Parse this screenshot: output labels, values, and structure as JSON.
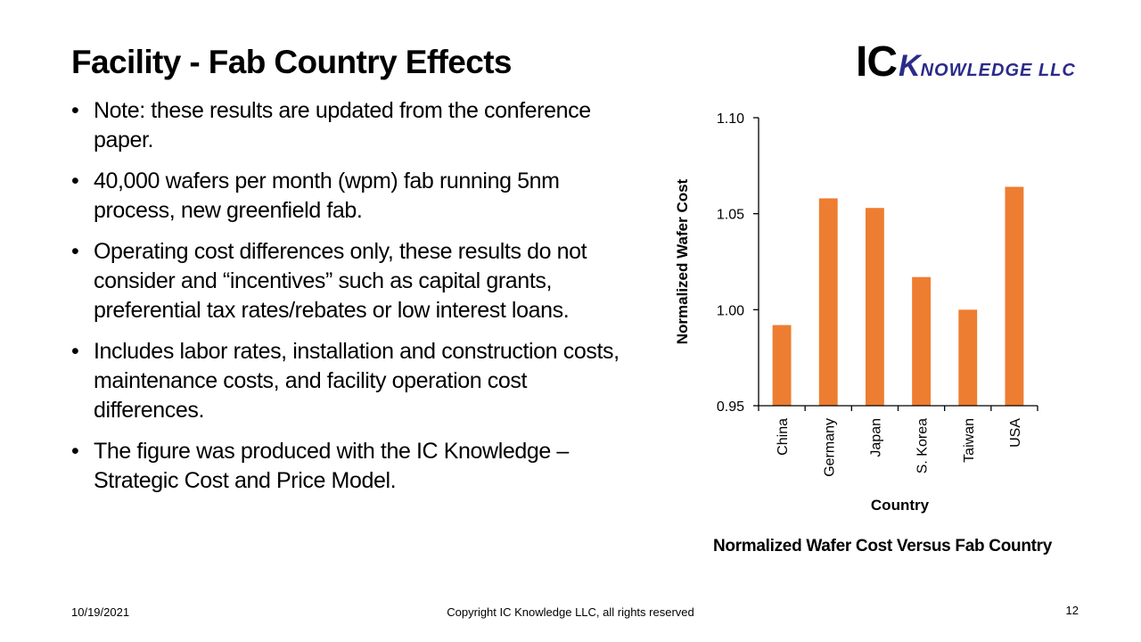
{
  "slide": {
    "title": "Facility - Fab Country Effects",
    "logo": {
      "ic": "IC",
      "k": "K",
      "rest": "NOWLEDGE LLC",
      "color": "#2b2b8a"
    },
    "bullets": [
      "Note: these results are updated from the conference paper.",
      "40,000 wafers per month (wpm) fab running 5nm process, new greenfield fab.",
      "Operating cost differences only, these results do not consider and “incentives” such as capital grants, preferential tax rates/rebates or low interest loans.",
      "Includes labor rates, installation and construction costs, maintenance costs, and facility operation cost differences.",
      "The figure was produced with the IC Knowledge – Strategic Cost and Price Model."
    ],
    "chart_caption": "Normalized Wafer Cost Versus Fab Country",
    "footer": {
      "date": "10/19/2021",
      "copyright": "Copyright IC Knowledge  LLC, all rights reserved",
      "page_number": "12"
    }
  },
  "chart_data": {
    "type": "bar",
    "categories": [
      "China",
      "Germany",
      "Japan",
      "S. Korea",
      "Taiwan",
      "USA"
    ],
    "values": [
      0.992,
      1.058,
      1.053,
      1.017,
      1.0,
      1.064
    ],
    "title": "",
    "xlabel": "Country",
    "ylabel": "Normalized Wafer Cost",
    "ylim": [
      0.95,
      1.1
    ],
    "yticks": [
      "0.95",
      "1.00",
      "1.05",
      "1.10"
    ],
    "grid": false,
    "legend": "none",
    "bar_color": "#ed7d31"
  }
}
